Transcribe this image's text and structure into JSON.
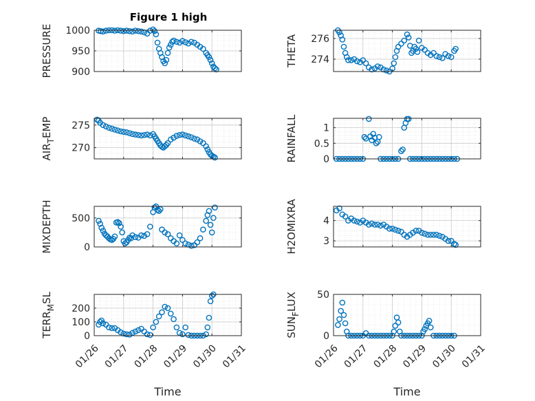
{
  "figure": {
    "title": "Figure 1 high",
    "marker_color": "#0072BD",
    "background": "#ffffff"
  },
  "chart_data": [
    {
      "type": "scatter",
      "marker": "circle-open",
      "ylabel": "PRESSURE",
      "xlabel": "",
      "ylim": [
        900,
        1000
      ],
      "yticks": [
        900,
        950,
        1000
      ],
      "xlim": [
        "01/26",
        "01/31"
      ],
      "xticks": [
        "01/26",
        "01/27",
        "01/28",
        "01/29",
        "01/30",
        "01/31"
      ],
      "show_xticklabels": false,
      "grid": true,
      "minor_grid": true,
      "series": [
        {
          "x": [
            0.15,
            0.22,
            0.3,
            0.4,
            0.5,
            0.6,
            0.7,
            0.8,
            0.9,
            1.0,
            1.1,
            1.2,
            1.3,
            1.4,
            1.5,
            1.6,
            1.7,
            1.8,
            1.9,
            2.0,
            2.05,
            2.1,
            2.15,
            2.2,
            2.25,
            2.3,
            2.35,
            2.4,
            2.45,
            2.5,
            2.55,
            2.6,
            2.65,
            2.7,
            2.8,
            2.9,
            3.0,
            3.1,
            3.2,
            3.3,
            3.4,
            3.5,
            3.6,
            3.7,
            3.8,
            3.85,
            3.9,
            3.95,
            4.0,
            4.05,
            4.1,
            4.15
          ],
          "y": [
            999,
            998,
            997,
            999,
            1000,
            1000,
            999,
            1000,
            999,
            998,
            999,
            998,
            997,
            999,
            998,
            997,
            995,
            992,
            999,
            1002,
            998,
            990,
            970,
            955,
            945,
            935,
            925,
            920,
            928,
            945,
            958,
            965,
            972,
            975,
            972,
            970,
            974,
            971,
            968,
            972,
            970,
            965,
            960,
            955,
            945,
            940,
            935,
            928,
            920,
            912,
            908,
            905
          ]
        }
      ]
    },
    {
      "type": "scatter",
      "marker": "circle-open",
      "ylabel": "THETA",
      "xlabel": "",
      "ylim": [
        272.8,
        276.8
      ],
      "yticks": [
        274,
        276
      ],
      "xlim": [
        "01/26",
        "01/31"
      ],
      "xticks": [
        "01/26",
        "01/27",
        "01/28",
        "01/29",
        "01/30",
        "01/31"
      ],
      "show_xticklabels": false,
      "grid": true,
      "minor_grid": true,
      "series": [
        {
          "x": [
            0.15,
            0.2,
            0.25,
            0.3,
            0.35,
            0.4,
            0.45,
            0.5,
            0.6,
            0.7,
            0.8,
            0.9,
            1.0,
            1.1,
            1.2,
            1.3,
            1.4,
            1.5,
            1.6,
            1.7,
            1.8,
            1.9,
            2.0,
            2.05,
            2.1,
            2.15,
            2.2,
            2.3,
            2.4,
            2.5,
            2.55,
            2.6,
            2.65,
            2.7,
            2.75,
            2.8,
            2.85,
            2.9,
            3.0,
            3.1,
            3.2,
            3.3,
            3.4,
            3.5,
            3.6,
            3.7,
            3.8,
            3.9,
            4.0,
            4.1,
            4.15
          ],
          "y": [
            276.8,
            276.6,
            276.3,
            275.9,
            275.2,
            274.6,
            274.2,
            273.9,
            273.9,
            274.0,
            273.8,
            273.7,
            273.9,
            273.6,
            273.2,
            273.0,
            273.1,
            273.3,
            273.2,
            273.0,
            272.9,
            272.8,
            273.1,
            273.6,
            274.2,
            274.8,
            275.2,
            275.5,
            275.8,
            276.4,
            276.1,
            275.3,
            274.6,
            274.8,
            275.2,
            275.0,
            274.7,
            275.8,
            275.1,
            274.9,
            274.6,
            274.4,
            274.6,
            274.3,
            274.2,
            274.1,
            274.5,
            274.3,
            274.2,
            274.8,
            275.0
          ]
        }
      ]
    },
    {
      "type": "scatter",
      "marker": "circle-open",
      "ylabel": "AIR_TEMP",
      "xlabel": "",
      "ylim": [
        267.5,
        276.5
      ],
      "yticks": [
        270,
        275
      ],
      "xlim": [
        "01/26",
        "01/31"
      ],
      "xticks": [
        "01/26",
        "01/27",
        "01/28",
        "01/29",
        "01/30",
        "01/31"
      ],
      "show_xticklabels": false,
      "grid": true,
      "minor_grid": true,
      "series": [
        {
          "x": [
            0.1,
            0.15,
            0.2,
            0.3,
            0.4,
            0.5,
            0.6,
            0.7,
            0.8,
            0.9,
            1.0,
            1.1,
            1.2,
            1.3,
            1.4,
            1.5,
            1.6,
            1.7,
            1.8,
            1.9,
            2.0,
            2.05,
            2.1,
            2.15,
            2.2,
            2.25,
            2.3,
            2.35,
            2.4,
            2.45,
            2.5,
            2.6,
            2.7,
            2.8,
            2.9,
            3.0,
            3.1,
            3.2,
            3.3,
            3.4,
            3.5,
            3.6,
            3.7,
            3.8,
            3.85,
            3.9,
            3.95,
            4.0,
            4.05,
            4.1
          ],
          "y": [
            276.2,
            276.0,
            275.5,
            275.0,
            274.7,
            274.4,
            274.2,
            274.0,
            273.8,
            273.6,
            273.5,
            273.4,
            273.2,
            273.0,
            272.9,
            272.8,
            272.7,
            272.8,
            272.9,
            272.7,
            273.0,
            272.5,
            272.0,
            271.5,
            271.0,
            270.5,
            270.2,
            270.0,
            270.3,
            270.6,
            271.0,
            271.8,
            272.2,
            272.6,
            272.8,
            272.9,
            272.7,
            272.5,
            272.3,
            272.0,
            271.8,
            271.4,
            271.0,
            270.3,
            269.6,
            269.0,
            268.5,
            268.2,
            268.0,
            267.8
          ]
        }
      ]
    },
    {
      "type": "scatter",
      "marker": "circle-open",
      "ylabel": "RAINFALL",
      "xlabel": "",
      "ylim": [
        0,
        1.3
      ],
      "yticks": [
        0,
        0.5,
        1
      ],
      "xlim": [
        "01/26",
        "01/31"
      ],
      "xticks": [
        "01/26",
        "01/27",
        "01/28",
        "01/29",
        "01/30",
        "01/31"
      ],
      "show_xticklabels": false,
      "grid": true,
      "minor_grid": true,
      "series": [
        {
          "x": [
            0.1,
            0.2,
            0.3,
            0.4,
            0.5,
            0.6,
            0.7,
            0.8,
            0.9,
            1.0,
            1.05,
            1.1,
            1.2,
            1.25,
            1.3,
            1.35,
            1.4,
            1.45,
            1.5,
            1.55,
            1.6,
            1.7,
            1.8,
            1.9,
            2.0,
            2.1,
            2.2,
            2.3,
            2.35,
            2.4,
            2.45,
            2.5,
            2.55,
            2.6,
            2.7,
            2.8,
            2.9,
            3.0,
            3.1,
            3.2,
            3.3,
            3.4,
            3.5,
            3.6,
            3.7,
            3.8,
            3.9,
            4.0,
            4.1,
            4.2
          ],
          "y": [
            0,
            0,
            0,
            0,
            0,
            0,
            0,
            0,
            0,
            0,
            0.7,
            0.65,
            1.28,
            0.72,
            0.6,
            0.8,
            0.68,
            0.5,
            0.55,
            0.7,
            0,
            0,
            0,
            0,
            0,
            0,
            0,
            0.25,
            0.3,
            1.0,
            1.15,
            1.28,
            1.28,
            0,
            0,
            0,
            0,
            0,
            0,
            0,
            0,
            0,
            0,
            0,
            0,
            0,
            0,
            0,
            0,
            0
          ]
        }
      ]
    },
    {
      "type": "scatter",
      "marker": "circle-open",
      "ylabel": "MIXDEPTH",
      "xlabel": "",
      "ylim": [
        0,
        700
      ],
      "yticks": [
        0,
        500
      ],
      "xlim": [
        "01/26",
        "01/31"
      ],
      "xticks": [
        "01/26",
        "01/27",
        "01/28",
        "01/29",
        "01/30",
        "01/31"
      ],
      "show_xticklabels": false,
      "grid": true,
      "minor_grid": true,
      "series": [
        {
          "x": [
            0.15,
            0.2,
            0.25,
            0.3,
            0.35,
            0.4,
            0.45,
            0.5,
            0.55,
            0.6,
            0.65,
            0.7,
            0.75,
            0.8,
            0.85,
            0.9,
            0.95,
            1.0,
            1.05,
            1.1,
            1.15,
            1.2,
            1.25,
            1.3,
            1.4,
            1.5,
            1.6,
            1.7,
            1.8,
            1.9,
            2.0,
            2.05,
            2.1,
            2.15,
            2.2,
            2.25,
            2.3,
            2.4,
            2.5,
            2.6,
            2.7,
            2.8,
            2.9,
            3.0,
            3.1,
            3.2,
            3.3,
            3.4,
            3.5,
            3.6,
            3.7,
            3.8,
            3.85,
            3.9,
            3.95,
            4.0,
            4.05,
            4.1
          ],
          "y": [
            450,
            400,
            330,
            280,
            230,
            200,
            180,
            150,
            130,
            120,
            140,
            180,
            420,
            430,
            410,
            350,
            250,
            100,
            60,
            80,
            120,
            160,
            150,
            200,
            170,
            160,
            200,
            190,
            220,
            350,
            600,
            680,
            700,
            640,
            620,
            650,
            300,
            250,
            220,
            150,
            100,
            60,
            200,
            120,
            60,
            40,
            20,
            30,
            80,
            150,
            300,
            450,
            550,
            620,
            380,
            250,
            500,
            680
          ]
        }
      ]
    },
    {
      "type": "scatter",
      "marker": "circle-open",
      "ylabel": "H2OMIXRA",
      "xlabel": "",
      "ylim": [
        2.7,
        4.7
      ],
      "yticks": [
        3,
        4
      ],
      "xlim": [
        "01/26",
        "01/31"
      ],
      "xticks": [
        "01/26",
        "01/27",
        "01/28",
        "01/29",
        "01/30",
        "01/31"
      ],
      "show_xticklabels": false,
      "grid": true,
      "minor_grid": true,
      "series": [
        {
          "x": [
            0.1,
            0.2,
            0.3,
            0.4,
            0.5,
            0.6,
            0.7,
            0.8,
            0.9,
            1.0,
            1.1,
            1.2,
            1.3,
            1.4,
            1.5,
            1.6,
            1.7,
            1.8,
            1.9,
            2.0,
            2.1,
            2.2,
            2.3,
            2.4,
            2.5,
            2.6,
            2.7,
            2.8,
            2.9,
            3.0,
            3.1,
            3.2,
            3.3,
            3.4,
            3.5,
            3.6,
            3.7,
            3.8,
            3.9,
            4.0,
            4.1,
            4.15
          ],
          "y": [
            4.5,
            4.6,
            4.3,
            4.2,
            4.0,
            4.1,
            4.0,
            3.95,
            3.9,
            4.0,
            3.9,
            3.8,
            3.85,
            3.8,
            3.8,
            3.75,
            3.8,
            3.7,
            3.6,
            3.6,
            3.55,
            3.5,
            3.45,
            3.3,
            3.2,
            3.3,
            3.4,
            3.5,
            3.5,
            3.4,
            3.35,
            3.3,
            3.3,
            3.3,
            3.3,
            3.25,
            3.2,
            3.1,
            3.0,
            3.0,
            2.85,
            2.8
          ]
        }
      ]
    },
    {
      "type": "scatter",
      "marker": "circle-open",
      "ylabel": "TERR_MSL",
      "xlabel": "Time",
      "ylim": [
        0,
        300
      ],
      "yticks": [
        0,
        100,
        200
      ],
      "xlim": [
        "01/26",
        "01/31"
      ],
      "xticks": [
        "01/26",
        "01/27",
        "01/28",
        "01/29",
        "01/30",
        "01/31"
      ],
      "show_xticklabels": true,
      "grid": true,
      "minor_grid": true,
      "series": [
        {
          "x": [
            0.15,
            0.2,
            0.25,
            0.3,
            0.4,
            0.5,
            0.6,
            0.7,
            0.8,
            0.9,
            1.0,
            1.1,
            1.2,
            1.3,
            1.4,
            1.5,
            1.6,
            1.7,
            1.8,
            1.9,
            2.0,
            2.1,
            2.2,
            2.3,
            2.4,
            2.5,
            2.6,
            2.7,
            2.8,
            2.9,
            3.0,
            3.1,
            3.2,
            3.3,
            3.4,
            3.5,
            3.6,
            3.7,
            3.8,
            3.85,
            3.9,
            3.95,
            4.0,
            4.05
          ],
          "y": [
            80,
            100,
            110,
            90,
            80,
            60,
            55,
            55,
            40,
            25,
            15,
            10,
            8,
            20,
            30,
            40,
            50,
            30,
            10,
            5,
            60,
            100,
            140,
            170,
            210,
            200,
            160,
            120,
            60,
            20,
            10,
            60,
            5,
            0,
            0,
            0,
            0,
            0,
            10,
            60,
            130,
            250,
            290,
            300
          ]
        }
      ]
    },
    {
      "type": "scatter",
      "marker": "circle-open",
      "ylabel": "SUN_FLUX",
      "xlabel": "Time",
      "ylim": [
        0,
        50
      ],
      "yticks": [
        0,
        50
      ],
      "xlim": [
        "01/26",
        "01/31"
      ],
      "xticks": [
        "01/26",
        "01/27",
        "01/28",
        "01/29",
        "01/30",
        "01/31"
      ],
      "show_xticklabels": true,
      "grid": true,
      "minor_grid": true,
      "series": [
        {
          "x": [
            0.15,
            0.2,
            0.25,
            0.3,
            0.35,
            0.4,
            0.45,
            0.5,
            0.6,
            0.7,
            0.8,
            0.9,
            1.0,
            1.1,
            1.2,
            1.3,
            1.4,
            1.5,
            1.6,
            1.7,
            1.8,
            1.9,
            2.0,
            2.05,
            2.1,
            2.15,
            2.2,
            2.25,
            2.3,
            2.4,
            2.5,
            2.6,
            2.7,
            2.8,
            2.9,
            3.0,
            3.05,
            3.1,
            3.15,
            3.2,
            3.25,
            3.3,
            3.4,
            3.5,
            3.6,
            3.7,
            3.8,
            3.9,
            4.0,
            4.1
          ],
          "y": [
            13,
            20,
            30,
            40,
            25,
            15,
            5,
            0,
            0,
            0,
            0,
            0,
            0,
            3,
            0,
            0,
            0,
            0,
            0,
            0,
            0,
            0,
            0,
            5,
            12,
            22,
            16,
            5,
            0,
            0,
            0,
            0,
            0,
            0,
            0,
            0,
            5,
            8,
            12,
            15,
            18,
            10,
            0,
            0,
            0,
            0,
            0,
            0,
            0,
            0
          ]
        }
      ]
    }
  ]
}
